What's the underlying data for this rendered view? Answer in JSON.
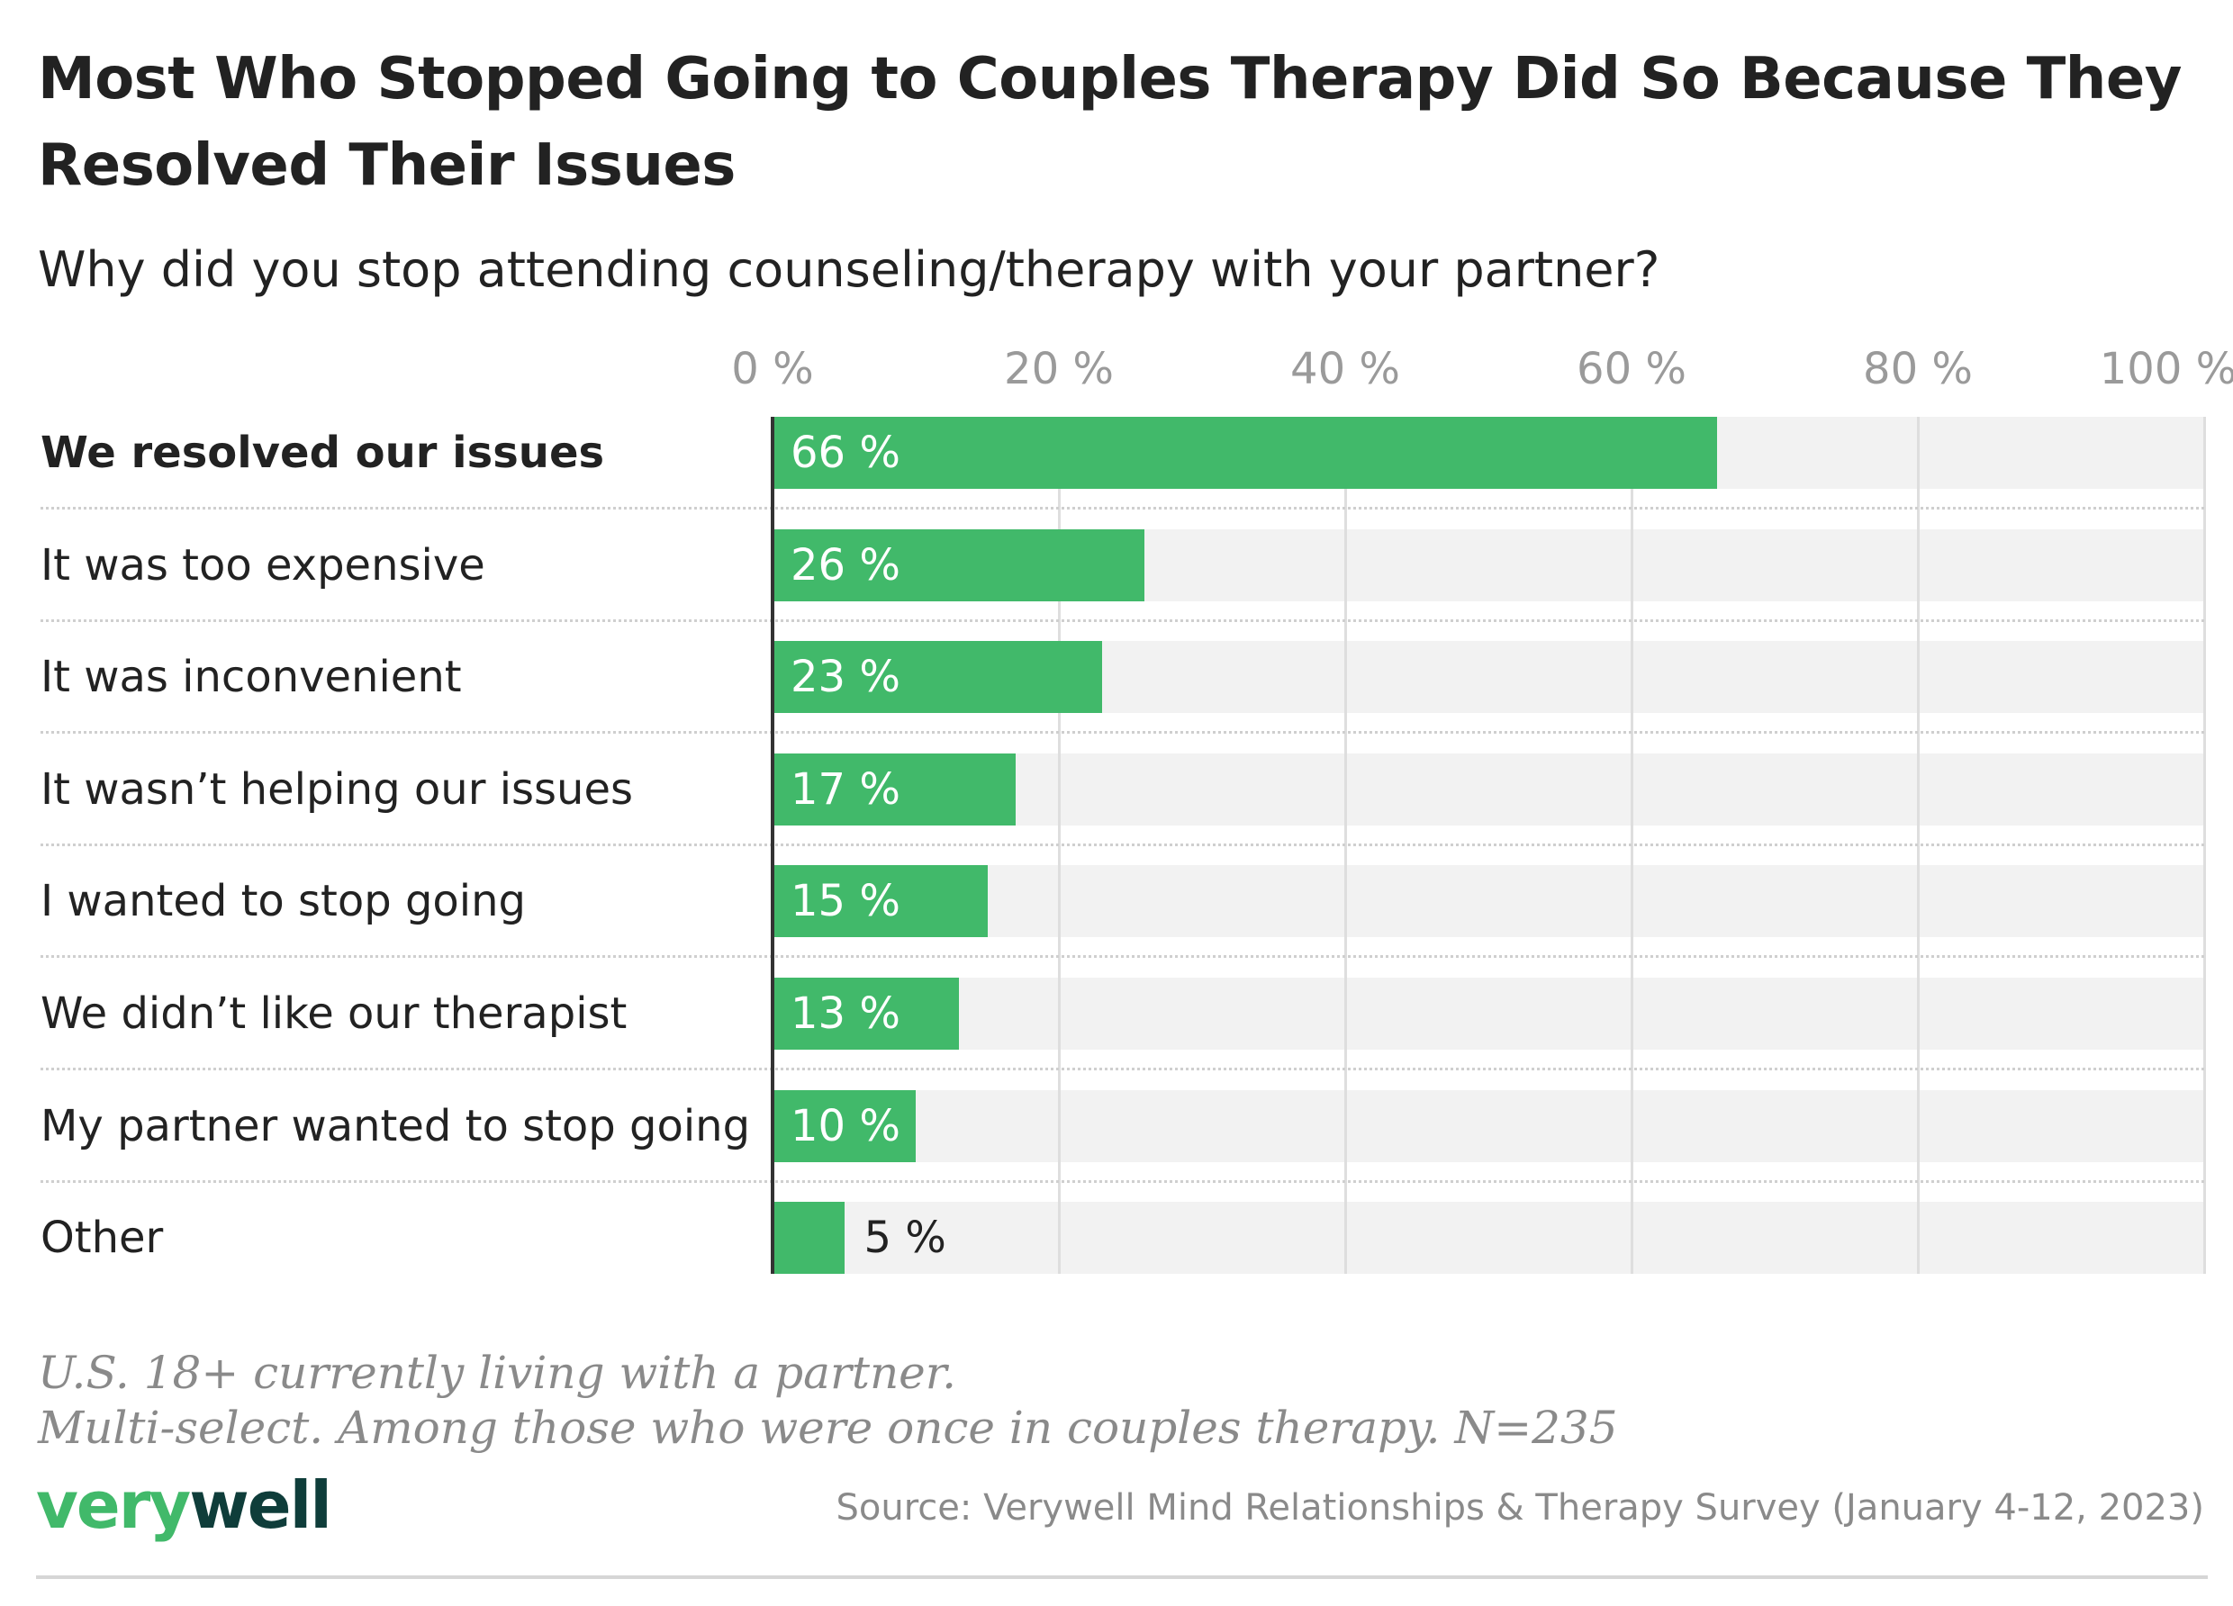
{
  "colors": {
    "bar": "#41b96a",
    "track": "#f2f2f2",
    "logo_very": "#41b96a",
    "logo_well": "#0f3d3a"
  },
  "chart_data": {
    "type": "bar",
    "orientation": "horizontal",
    "title": "Most Who Stopped Going to Couples Therapy Did So Because They Resolved Their Issues",
    "subtitle": "Why did you stop attending counseling/therapy with your partner?",
    "categories": [
      "We resolved our issues",
      "It was too expensive",
      "It was inconvenient",
      "It wasn’t helping our issues",
      "I wanted to stop going",
      "We didn’t like our therapist",
      "My partner wanted to stop going",
      "Other"
    ],
    "values": [
      66,
      26,
      23,
      17,
      15,
      13,
      10,
      5
    ],
    "value_labels": [
      "66 %",
      "26 %",
      "23 %",
      "17 %",
      "15 %",
      "13 %",
      "10 %",
      "5 %"
    ],
    "xlim": [
      0,
      100
    ],
    "x_ticks": [
      0,
      20,
      40,
      60,
      80,
      100
    ],
    "x_tick_labels": [
      "0 %",
      "20 %",
      "40 %",
      "60 %",
      "80 %",
      "100 %"
    ],
    "grid": true,
    "highlight_category": "We resolved our issues"
  },
  "notes": [
    "U.S. 18+ currently living with a partner.",
    "Multi-select. Among those who were once in couples therapy. N=235"
  ],
  "logo": {
    "part1": "very",
    "part2": "well"
  },
  "source": "Source: Verywell Mind Relationships & Therapy Survey (January 4-12, 2023)"
}
